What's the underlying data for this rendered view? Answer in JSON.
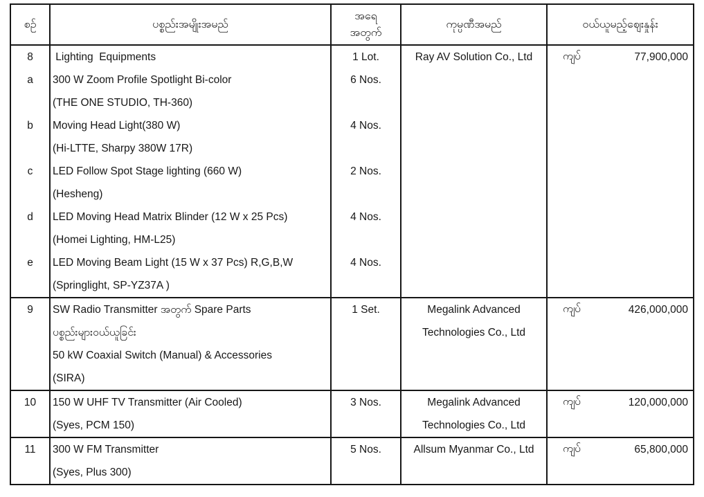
{
  "header": {
    "col_no": "စဉ်",
    "col_item": "ပစ္စည်းအမျိုးအမည်",
    "col_qty_line1": "အရေ",
    "col_qty_line2": "အတွက်",
    "col_company": "ကုမ္ပဏီအမည်",
    "col_price": "ဝယ်ယူမည့်ဈေးနှုန်း"
  },
  "rows": [
    {
      "lines": [
        {
          "no": "8",
          "item": " Lighting  Equipments",
          "qty": "1 Lot."
        },
        {
          "no": "a",
          "item": "300 W Zoom Profile Spotlight Bi-color",
          "qty": "6 Nos."
        },
        {
          "no": "",
          "item": "(THE ONE STUDIO, TH-360)",
          "qty": ""
        },
        {
          "no": "b",
          "item": "Moving Head Light(380 W)",
          "qty": "4 Nos."
        },
        {
          "no": "",
          "item": "(Hi-LTTE, Sharpy 380W 17R)",
          "qty": ""
        },
        {
          "no": "c",
          "item": "LED Follow Spot Stage lighting (660 W)",
          "qty": "2 Nos."
        },
        {
          "no": "",
          "item": "(Hesheng)",
          "qty": ""
        },
        {
          "no": "d",
          "item": "LED Moving Head Matrix Blinder (12 W x 25 Pcs)",
          "qty": "4 Nos."
        },
        {
          "no": "",
          "item": "(Homei Lighting, HM-L25)",
          "qty": ""
        },
        {
          "no": "e",
          "item": "LED Moving Beam Light (15 W x 37 Pcs) R,G,B,W",
          "qty": "4 Nos."
        },
        {
          "no": "",
          "item": "(Springlight, SP-YZ37A )",
          "qty": ""
        }
      ],
      "company_lines": [
        "Ray AV Solution Co., Ltd"
      ],
      "currency": "ကျပ်",
      "price": "77,900,000"
    },
    {
      "lines": [
        {
          "no": "9",
          "item": "SW Radio Transmitter အတွက် Spare Parts",
          "qty": "1 Set."
        },
        {
          "no": "",
          "item": "ပစ္စည်းများဝယ်ယူခြင်း",
          "qty": ""
        },
        {
          "no": "",
          "item": "50 kW Coaxial Switch (Manual) & Accessories",
          "qty": ""
        },
        {
          "no": "",
          "item": "(SIRA)",
          "qty": ""
        }
      ],
      "company_lines": [
        "Megalink Advanced",
        "Technologies Co., Ltd"
      ],
      "currency": "ကျပ်",
      "price": "426,000,000"
    },
    {
      "lines": [
        {
          "no": "10",
          "item": "150 W UHF TV Transmitter (Air Cooled)",
          "qty": "3 Nos."
        },
        {
          "no": "",
          "item": "(Syes, PCM 150)",
          "qty": ""
        }
      ],
      "company_lines": [
        "Megalink Advanced",
        "Technologies Co., Ltd"
      ],
      "currency": "ကျပ်",
      "price": "120,000,000"
    },
    {
      "lines": [
        {
          "no": "11",
          "item": "300 W FM Transmitter",
          "qty": "5 Nos."
        },
        {
          "no": "",
          "item": "(Syes, Plus 300)",
          "qty": ""
        }
      ],
      "company_lines": [
        "Allsum Myanmar Co., Ltd"
      ],
      "currency": "ကျပ်",
      "price": "65,800,000"
    }
  ]
}
